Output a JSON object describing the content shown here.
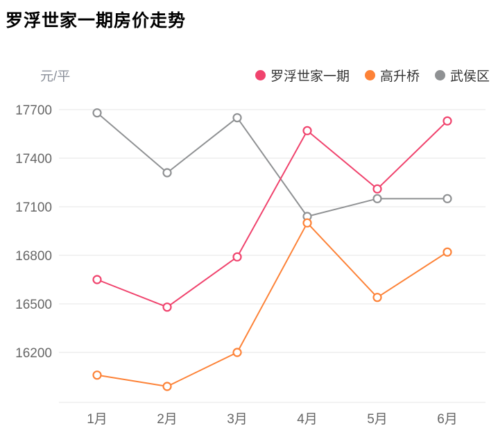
{
  "page": {
    "title": "罗浮世家一期房价走势"
  },
  "chart": {
    "unit_label": "元/平"
  },
  "chart_data": {
    "type": "line",
    "title": "罗浮世家一期房价走势",
    "xlabel": "",
    "ylabel": "元/平",
    "categories": [
      "1月",
      "2月",
      "3月",
      "4月",
      "5月",
      "6月"
    ],
    "series": [
      {
        "name": "罗浮世家一期",
        "color": "#f0436d",
        "values": [
          16650,
          16480,
          16790,
          17570,
          17210,
          17630
        ]
      },
      {
        "name": "高升桥",
        "color": "#fd8237",
        "values": [
          16060,
          15990,
          16200,
          17000,
          16540,
          16820
        ]
      },
      {
        "name": "武侯区",
        "color": "#8f9193",
        "values": [
          17680,
          17310,
          17650,
          17040,
          17150,
          17150
        ]
      }
    ],
    "yticks": [
      16200,
      16500,
      16800,
      17100,
      17400,
      17700
    ],
    "ylim": [
      15890,
      17780
    ],
    "grid": true,
    "legend_position": "top",
    "marker_style": "hollow-circle"
  }
}
